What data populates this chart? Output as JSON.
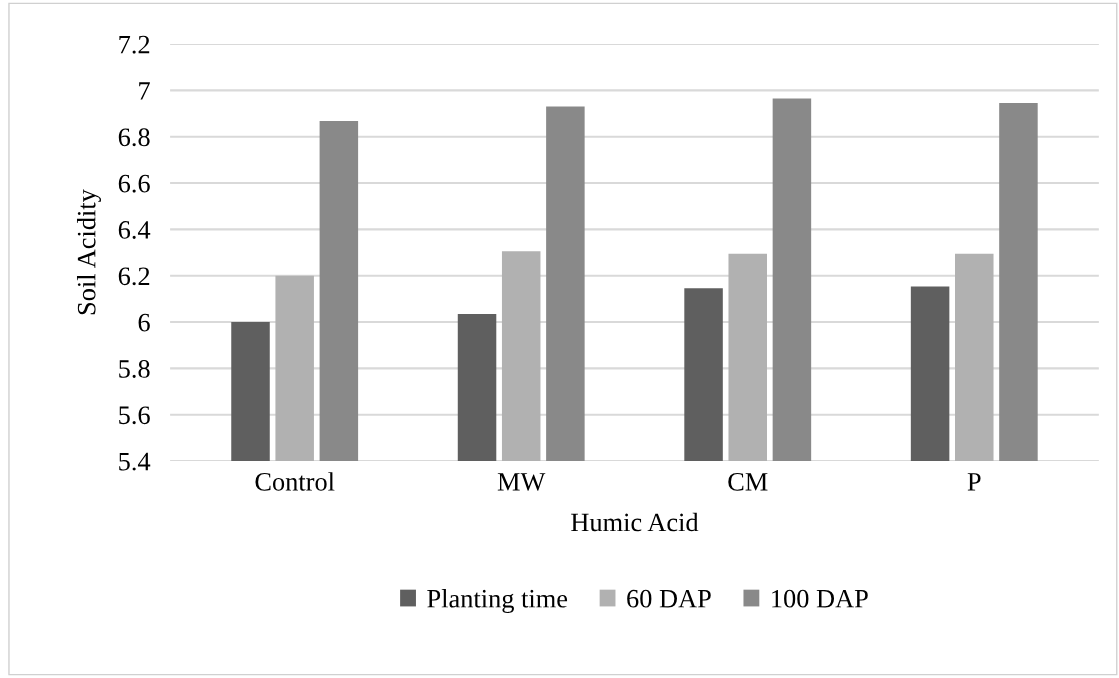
{
  "chart_data": {
    "type": "bar",
    "xlabel": "Humic Acid",
    "ylabel": "Soil Acidity",
    "categories": [
      "Control",
      "MW",
      "CM",
      "P"
    ],
    "series": [
      {
        "name": "Planting time",
        "color": "#5f5f5f",
        "values": [
          6.0,
          6.035,
          6.146,
          6.154
        ]
      },
      {
        "name": "60 DAP",
        "color": "#b1b1b1",
        "values": [
          6.2,
          6.306,
          6.295,
          6.295
        ]
      },
      {
        "name": "100 DAP",
        "color": "#898989",
        "values": [
          6.868,
          6.93,
          6.965,
          6.946
        ]
      }
    ],
    "ylim": [
      5.4,
      7.2
    ],
    "yticks": [
      5.4,
      5.6,
      5.8,
      6,
      6.2,
      6.4,
      6.6,
      6.8,
      7,
      7.2
    ],
    "grid": "y",
    "legend": "bottom"
  }
}
